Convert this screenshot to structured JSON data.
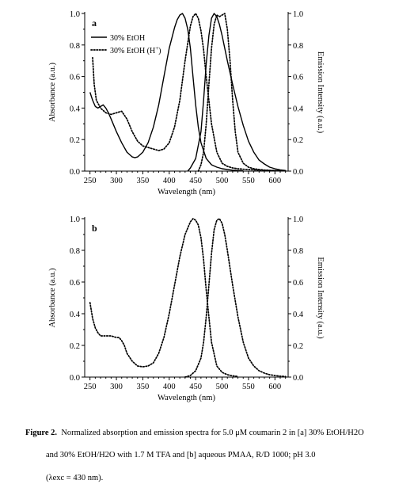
{
  "chart_data": [
    {
      "type": "line",
      "panel_label": "a",
      "xlabel": "Wavelength (nm)",
      "ylabel": "Absorbance (a.u.)",
      "y2label": "Emission Intensity (a.u.)",
      "xlim": [
        240,
        625
      ],
      "ylim": [
        0,
        1.0
      ],
      "y2lim": [
        0,
        1.0
      ],
      "xticks": [
        250,
        300,
        350,
        400,
        450,
        500,
        550,
        600
      ],
      "yticks": [
        "0.0",
        "0.2",
        "0.4",
        "0.6",
        "0.8",
        "1.0"
      ],
      "legend_position": "top-left",
      "legend": [
        {
          "label": "30% EtOH",
          "style": "solid"
        },
        {
          "label": "30% EtOH (H+)",
          "style": "dotted"
        }
      ],
      "series": [
        {
          "name": "30% EtOH",
          "kind": "absorbance",
          "style": "solid",
          "x": [
            250,
            255,
            260,
            265,
            270,
            275,
            280,
            285,
            290,
            300,
            310,
            320,
            330,
            335,
            340,
            350,
            360,
            370,
            380,
            390,
            400,
            410,
            415,
            420,
            425,
            430,
            435,
            440,
            445,
            450,
            455,
            460,
            470,
            480,
            490,
            500,
            510,
            520,
            530,
            540
          ],
          "y": [
            0.5,
            0.45,
            0.41,
            0.4,
            0.41,
            0.42,
            0.4,
            0.37,
            0.33,
            0.25,
            0.18,
            0.12,
            0.09,
            0.085,
            0.09,
            0.12,
            0.18,
            0.28,
            0.42,
            0.6,
            0.78,
            0.91,
            0.96,
            0.99,
            1.0,
            0.97,
            0.9,
            0.78,
            0.6,
            0.42,
            0.28,
            0.18,
            0.08,
            0.04,
            0.025,
            0.015,
            0.01,
            0.006,
            0.004,
            0.002
          ]
        },
        {
          "name": "30% EtOH",
          "kind": "emission",
          "style": "solid",
          "x": [
            435,
            440,
            450,
            460,
            465,
            470,
            475,
            480,
            485,
            490,
            495,
            500,
            505,
            510,
            520,
            530,
            540,
            550,
            560,
            570,
            580,
            590,
            600,
            610,
            620
          ],
          "y": [
            0.0,
            0.02,
            0.08,
            0.25,
            0.45,
            0.68,
            0.86,
            0.97,
            1.0,
            0.98,
            0.93,
            0.86,
            0.78,
            0.7,
            0.55,
            0.41,
            0.29,
            0.19,
            0.12,
            0.07,
            0.045,
            0.025,
            0.015,
            0.008,
            0.004
          ]
        },
        {
          "name": "30% EtOH (H+)",
          "kind": "absorbance",
          "style": "dotted",
          "x": [
            255,
            258,
            262,
            270,
            280,
            290,
            300,
            310,
            320,
            330,
            340,
            350,
            360,
            370,
            380,
            390,
            400,
            410,
            420,
            430,
            440,
            445,
            450,
            455,
            460,
            465,
            470,
            480,
            490,
            500,
            510,
            520,
            530,
            540,
            550,
            560,
            570,
            580,
            590,
            600,
            610,
            620
          ],
          "y": [
            0.72,
            0.55,
            0.45,
            0.4,
            0.37,
            0.36,
            0.37,
            0.38,
            0.33,
            0.25,
            0.19,
            0.16,
            0.15,
            0.14,
            0.13,
            0.14,
            0.18,
            0.28,
            0.45,
            0.7,
            0.92,
            0.98,
            1.0,
            0.97,
            0.89,
            0.77,
            0.6,
            0.3,
            0.12,
            0.05,
            0.03,
            0.02,
            0.015,
            0.012,
            0.01,
            0.008,
            0.006,
            0.005,
            0.004,
            0.003,
            0.002,
            0.002
          ]
        },
        {
          "name": "30% EtOH (H+)",
          "kind": "emission",
          "style": "dotted",
          "x": [
            455,
            460,
            465,
            470,
            475,
            480,
            485,
            490,
            495,
            500,
            505,
            510,
            515,
            520,
            525,
            530,
            540,
            550,
            560,
            570,
            580,
            590,
            600,
            610,
            620
          ],
          "y": [
            0.0,
            0.04,
            0.12,
            0.3,
            0.55,
            0.78,
            0.93,
            0.99,
            0.98,
            0.99,
            1.0,
            0.9,
            0.7,
            0.45,
            0.25,
            0.12,
            0.05,
            0.025,
            0.015,
            0.01,
            0.007,
            0.005,
            0.004,
            0.003,
            0.002
          ]
        }
      ]
    },
    {
      "type": "line",
      "panel_label": "b",
      "xlabel": "Wavelength (nm)",
      "ylabel": "Absorbance (a.u.)",
      "y2label": "Emission Intensity (a.u.)",
      "xlim": [
        240,
        625
      ],
      "ylim": [
        0,
        1.0
      ],
      "y2lim": [
        0,
        1.0
      ],
      "xticks": [
        250,
        300,
        350,
        400,
        450,
        500,
        550,
        600
      ],
      "yticks": [
        "0.0",
        "0.2",
        "0.4",
        "0.6",
        "0.8",
        "1.0"
      ],
      "series": [
        {
          "kind": "absorbance",
          "style": "dotted",
          "x": [
            250,
            255,
            260,
            265,
            270,
            275,
            280,
            290,
            300,
            305,
            310,
            315,
            320,
            330,
            340,
            350,
            360,
            370,
            380,
            390,
            400,
            410,
            420,
            430,
            440,
            445,
            450,
            455,
            460,
            465,
            470,
            475,
            480,
            490,
            500,
            510,
            520,
            530
          ],
          "y": [
            0.47,
            0.37,
            0.31,
            0.28,
            0.26,
            0.26,
            0.26,
            0.26,
            0.25,
            0.25,
            0.23,
            0.2,
            0.15,
            0.1,
            0.07,
            0.065,
            0.07,
            0.09,
            0.15,
            0.25,
            0.4,
            0.58,
            0.76,
            0.9,
            0.98,
            1.0,
            0.99,
            0.96,
            0.88,
            0.74,
            0.55,
            0.38,
            0.22,
            0.07,
            0.03,
            0.015,
            0.008,
            0.004
          ]
        },
        {
          "kind": "emission",
          "style": "dotted",
          "x": [
            430,
            440,
            450,
            460,
            465,
            470,
            475,
            480,
            485,
            490,
            495,
            500,
            505,
            510,
            520,
            530,
            540,
            550,
            560,
            570,
            580,
            590,
            600,
            610,
            620
          ],
          "y": [
            0.0,
            0.01,
            0.04,
            0.12,
            0.22,
            0.38,
            0.58,
            0.78,
            0.93,
            0.99,
            1.0,
            0.97,
            0.9,
            0.8,
            0.58,
            0.38,
            0.22,
            0.12,
            0.07,
            0.04,
            0.025,
            0.015,
            0.01,
            0.006,
            0.004
          ]
        }
      ]
    }
  ],
  "caption": {
    "label": "Figure 2.",
    "line1": "Normalized absorption and emission spectra for 5.0 μM coumarin 2 in [a] 30% EtOH/H2O",
    "line2": "and 30% EtOH/H2O with 1.7 M TFA and [b] aqueous PMAA, R/D 1000; pH 3.0",
    "line3": "(λexc = 430 nm)."
  }
}
